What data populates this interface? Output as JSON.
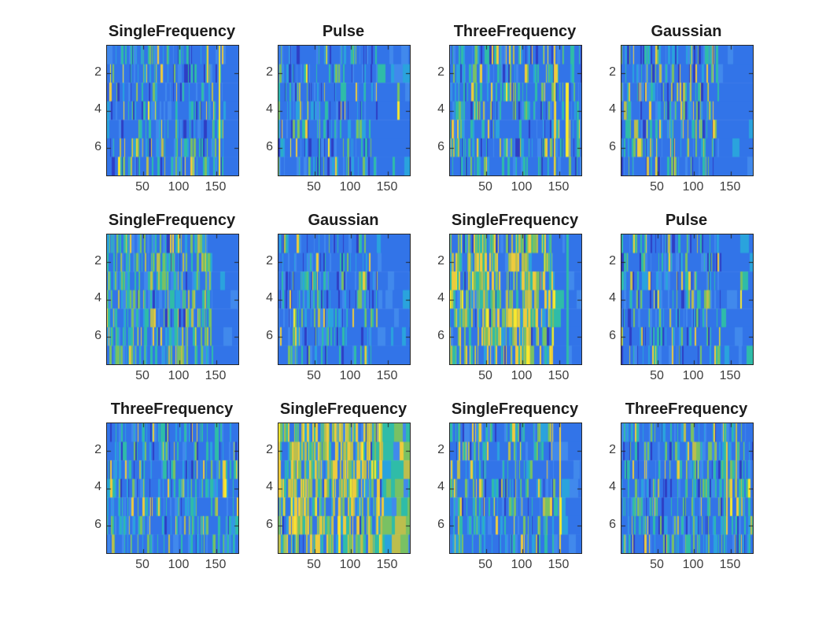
{
  "figure": {
    "background": "#ffffff",
    "axis_color": "#262626",
    "tick_label_color": "#3d3d3d",
    "title_color": "#1c1c1c"
  },
  "palette": {
    "dark": "#2e3ec4",
    "blue1": "#3274e8",
    "blue2": "#4189ec",
    "cyan": "#2aa3dd",
    "teal": "#2fbca8",
    "green": "#79c163",
    "ygreen": "#bcbe4e",
    "yellow": "#eecb3d",
    "byellow": "#f9e92e"
  },
  "tails": {
    "blue": [
      0,
      78,
      14,
      6,
      2,
      0,
      0,
      0,
      0
    ],
    "teal": [
      0,
      5,
      5,
      10,
      45,
      25,
      8,
      2,
      0
    ]
  },
  "chart_data": [
    {
      "type": "heatmap",
      "title": "SingleFrequency",
      "rows": 7,
      "cols": 180,
      "xticks": [
        50,
        100,
        150
      ],
      "yticks": [
        2,
        4,
        6
      ],
      "xlim": [
        0.5,
        180.5
      ],
      "ylim": [
        0.5,
        7.5
      ],
      "colormap": "parula",
      "seed": 11,
      "weights": [
        8,
        42,
        14,
        10,
        14,
        6,
        2,
        3,
        1
      ],
      "busy_end": 160,
      "tail": "blue",
      "features": [
        {
          "x": 154,
          "r1": 1,
          "r2": 7,
          "color": "byellow",
          "w": 2
        },
        {
          "x": 137,
          "r1": 1,
          "r2": 2,
          "color": "yellow",
          "w": 2
        }
      ]
    },
    {
      "type": "heatmap",
      "title": "Pulse",
      "rows": 7,
      "cols": 180,
      "xticks": [
        50,
        100,
        150
      ],
      "yticks": [
        2,
        4,
        6
      ],
      "xlim": [
        0.5,
        180.5
      ],
      "ylim": [
        0.5,
        7.5
      ],
      "colormap": "parula",
      "seed": 22,
      "weights": [
        10,
        45,
        14,
        10,
        10,
        5,
        2,
        3,
        1
      ],
      "busy_end": 136,
      "tail": "blue",
      "features": [
        {
          "x": 163,
          "r1": 3,
          "r2": 3,
          "color": "green",
          "w": 3
        },
        {
          "x": 163,
          "r1": 4,
          "r2": 4,
          "color": "byellow",
          "w": 3
        },
        {
          "x": 38,
          "r1": 2,
          "r2": 2,
          "color": "byellow",
          "w": 2
        }
      ]
    },
    {
      "type": "heatmap",
      "title": "ThreeFrequency",
      "rows": 7,
      "cols": 180,
      "xticks": [
        50,
        100,
        150
      ],
      "yticks": [
        2,
        4,
        6
      ],
      "xlim": [
        0.5,
        180.5
      ],
      "ylim": [
        0.5,
        7.5
      ],
      "colormap": "parula",
      "seed": 33,
      "weights": [
        8,
        40,
        12,
        10,
        16,
        6,
        3,
        4,
        1
      ],
      "busy_end": 180,
      "tail": "blue",
      "features": [
        {
          "x": 143,
          "r1": 1,
          "r2": 7,
          "color": "yellow",
          "w": 2
        },
        {
          "x": 159,
          "r1": 3,
          "r2": 6,
          "color": "byellow",
          "w": 4
        },
        {
          "x": 168,
          "r1": 1,
          "r2": 2,
          "color": "teal",
          "w": 3
        },
        {
          "x": 174,
          "r1": 4,
          "r2": 6,
          "color": "teal",
          "w": 3
        }
      ]
    },
    {
      "type": "heatmap",
      "title": "Gaussian",
      "rows": 7,
      "cols": 180,
      "xticks": [
        50,
        100,
        150
      ],
      "yticks": [
        2,
        4,
        6
      ],
      "xlim": [
        0.5,
        180.5
      ],
      "ylim": [
        0.5,
        7.5
      ],
      "colormap": "parula",
      "seed": 44,
      "weights": [
        8,
        38,
        12,
        10,
        12,
        8,
        4,
        7,
        1
      ],
      "busy_end": 134,
      "tail": "blue",
      "features": [
        {
          "x": 18,
          "r1": 5,
          "r2": 5,
          "color": "ygreen",
          "w": 5
        },
        {
          "x": 30,
          "r1": 5,
          "r2": 5,
          "color": "dark",
          "w": 4
        }
      ]
    },
    {
      "type": "heatmap",
      "title": "SingleFrequency",
      "rows": 7,
      "cols": 180,
      "xticks": [
        50,
        100,
        150
      ],
      "yticks": [
        2,
        4,
        6
      ],
      "xlim": [
        0.5,
        180.5
      ],
      "ylim": [
        0.5,
        7.5
      ],
      "colormap": "parula",
      "seed": 55,
      "weights": [
        3,
        25,
        12,
        12,
        22,
        16,
        6,
        4,
        0
      ],
      "busy_end": 145,
      "tail": "blue",
      "features": [
        {
          "x": 90,
          "r1": 1,
          "r2": 1,
          "color": "yellow",
          "w": 2
        }
      ]
    },
    {
      "type": "heatmap",
      "title": "Gaussian",
      "rows": 7,
      "cols": 180,
      "xticks": [
        50,
        100,
        150
      ],
      "yticks": [
        2,
        4,
        6
      ],
      "xlim": [
        0.5,
        180.5
      ],
      "ylim": [
        0.5,
        7.5
      ],
      "colormap": "parula",
      "seed": 66,
      "weights": [
        6,
        42,
        14,
        12,
        14,
        8,
        2,
        2,
        0
      ],
      "busy_end": 136,
      "tail": "blue",
      "features": [
        {
          "x": 21,
          "r1": 5,
          "r2": 5,
          "color": "byellow",
          "w": 2
        }
      ]
    },
    {
      "type": "heatmap",
      "title": "SingleFrequency",
      "rows": 7,
      "cols": 180,
      "xticks": [
        50,
        100,
        150
      ],
      "yticks": [
        2,
        4,
        6
      ],
      "xlim": [
        0.5,
        180.5
      ],
      "ylim": [
        0.5,
        7.5
      ],
      "colormap": "parula",
      "seed": 77,
      "weights": [
        3,
        18,
        8,
        8,
        14,
        16,
        12,
        18,
        3
      ],
      "busy_end": 143,
      "tail": "blue",
      "features": [
        {
          "x": 160,
          "r1": 1,
          "r2": 7,
          "color": "teal",
          "w": 3
        }
      ]
    },
    {
      "type": "heatmap",
      "title": "Pulse",
      "rows": 7,
      "cols": 180,
      "xticks": [
        50,
        100,
        150
      ],
      "yticks": [
        2,
        4,
        6
      ],
      "xlim": [
        0.5,
        180.5
      ],
      "ylim": [
        0.5,
        7.5
      ],
      "colormap": "parula",
      "seed": 88,
      "weights": [
        10,
        44,
        14,
        10,
        10,
        6,
        2,
        4,
        0
      ],
      "busy_end": 136,
      "tail": "blue",
      "features": [
        {
          "x": 163,
          "r1": 3,
          "r2": 3,
          "color": "green",
          "w": 3
        },
        {
          "x": 163,
          "r1": 4,
          "r2": 4,
          "color": "byellow",
          "w": 2
        }
      ]
    },
    {
      "type": "heatmap",
      "title": "ThreeFrequency",
      "rows": 7,
      "cols": 180,
      "xticks": [
        50,
        100,
        150
      ],
      "yticks": [
        2,
        4,
        6
      ],
      "xlim": [
        0.5,
        180.5
      ],
      "ylim": [
        0.5,
        7.5
      ],
      "colormap": "parula",
      "seed": 99,
      "weights": [
        6,
        40,
        14,
        12,
        16,
        6,
        2,
        4,
        0
      ],
      "busy_end": 180,
      "tail": "blue",
      "features": [
        {
          "x": 159,
          "r1": 3,
          "r2": 4,
          "color": "yellow",
          "w": 4
        },
        {
          "x": 161,
          "r1": 4,
          "r2": 4,
          "color": "byellow",
          "w": 3
        },
        {
          "x": 178,
          "r1": 5,
          "r2": 5,
          "color": "yellow",
          "w": 3
        },
        {
          "x": 148,
          "r1": 1,
          "r2": 2,
          "color": "teal",
          "w": 5
        }
      ]
    },
    {
      "type": "heatmap",
      "title": "SingleFrequency",
      "rows": 7,
      "cols": 180,
      "xticks": [
        50,
        100,
        150
      ],
      "yticks": [
        2,
        4,
        6
      ],
      "xlim": [
        0.5,
        180.5
      ],
      "ylim": [
        0.5,
        7.5
      ],
      "colormap": "parula",
      "seed": 111,
      "weights": [
        2,
        12,
        6,
        8,
        14,
        14,
        18,
        22,
        4
      ],
      "busy_end": 143,
      "tail": "teal",
      "features": []
    },
    {
      "type": "heatmap",
      "title": "SingleFrequency",
      "rows": 7,
      "cols": 180,
      "xticks": [
        50,
        100,
        150
      ],
      "yticks": [
        2,
        4,
        6
      ],
      "xlim": [
        0.5,
        180.5
      ],
      "ylim": [
        0.5,
        7.5
      ],
      "colormap": "parula",
      "seed": 122,
      "weights": [
        6,
        40,
        14,
        10,
        14,
        8,
        3,
        5,
        0
      ],
      "busy_end": 143,
      "tail": "blue",
      "features": [
        {
          "x": 150,
          "r1": 1,
          "r2": 7,
          "color": "yellow",
          "w": 2
        },
        {
          "x": 150,
          "r1": 5,
          "r2": 6,
          "color": "byellow",
          "w": 3
        }
      ]
    },
    {
      "type": "heatmap",
      "title": "ThreeFrequency",
      "rows": 7,
      "cols": 180,
      "xticks": [
        50,
        100,
        150
      ],
      "yticks": [
        2,
        4,
        6
      ],
      "xlim": [
        0.5,
        180.5
      ],
      "ylim": [
        0.5,
        7.5
      ],
      "colormap": "parula",
      "seed": 133,
      "weights": [
        6,
        38,
        14,
        12,
        16,
        8,
        2,
        4,
        0
      ],
      "busy_end": 180,
      "tail": "blue",
      "features": [
        {
          "x": 144,
          "r1": 2,
          "r2": 6,
          "color": "yellow",
          "w": 2
        },
        {
          "x": 157,
          "r1": 1,
          "r2": 4,
          "color": "ygreen",
          "w": 2
        },
        {
          "x": 149,
          "r1": 5,
          "r2": 5,
          "color": "byellow",
          "w": 3
        },
        {
          "x": 174,
          "r1": 4,
          "r2": 4,
          "color": "byellow",
          "w": 3
        },
        {
          "x": 141,
          "r1": 1,
          "r2": 7,
          "color": "teal",
          "w": 2
        }
      ]
    }
  ]
}
